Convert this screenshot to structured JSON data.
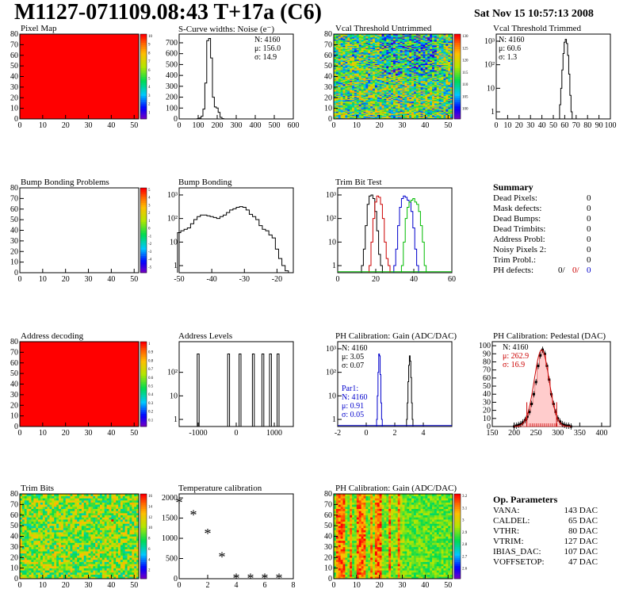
{
  "header": {
    "title": "M1127-071109.08:43 T+17a (C6)",
    "date": "Sat Nov 15 10:57:13 2008"
  },
  "colors": {
    "red": "#ff0000",
    "blue": "#0000cc",
    "green": "#00bb00",
    "darkred": "#cc0000",
    "black": "#000000"
  },
  "charts": {
    "pixel_map": {
      "title": "Pixel Map",
      "chart_data": {
        "type": "heatmap",
        "xlim": [
          0,
          52
        ],
        "ylim": [
          0,
          80
        ],
        "xticks": [
          0,
          10,
          20,
          30,
          40,
          50
        ],
        "yticks": [
          0,
          10,
          20,
          30,
          40,
          50,
          60,
          70,
          80
        ],
        "fill": "uniform red",
        "zlim": [
          0,
          10
        ],
        "zticks": [
          "1",
          "2",
          "3",
          "4",
          "5",
          "6",
          "7",
          "8",
          "9",
          "10"
        ]
      }
    },
    "scurve": {
      "title": "S-Curve widths: Noise (e⁻)",
      "stats": [
        "N: 4160",
        "μ: 156.0",
        "σ: 14.9"
      ],
      "chart_data": {
        "type": "histogram",
        "xlim": [
          0,
          600
        ],
        "ylim": [
          0,
          780
        ],
        "xticks": [
          0,
          100,
          200,
          300,
          400,
          500,
          600
        ],
        "yticks": [
          0,
          100,
          200,
          300,
          400,
          500,
          600,
          700
        ],
        "x": [
          100,
          110,
          120,
          130,
          140,
          150,
          160,
          170,
          180,
          190,
          200,
          210,
          220,
          230
        ],
        "y": [
          3,
          8,
          25,
          90,
          330,
          720,
          740,
          560,
          200,
          110,
          100,
          60,
          15,
          3
        ]
      }
    },
    "vcal_untrimmed": {
      "title": "Vcal Threshold Untrimmed",
      "chart_data": {
        "type": "heatmap",
        "xlim": [
          0,
          52
        ],
        "ylim": [
          0,
          80
        ],
        "xticks": [
          0,
          10,
          20,
          30,
          40,
          50
        ],
        "yticks": [
          0,
          10,
          20,
          30,
          40,
          50,
          60,
          70,
          80
        ],
        "zlim": [
          95,
          130
        ],
        "zticks": [
          "100",
          "105",
          "110",
          "115",
          "120",
          "125",
          "130"
        ]
      }
    },
    "vcal_trimmed": {
      "title": "Vcal Threshold Trimmed",
      "stats": [
        "N: 4160",
        "μ: 60.6",
        "σ:  1.3"
      ],
      "chart_data": {
        "type": "histogram",
        "log_y": true,
        "xlim": [
          0,
          100
        ],
        "ylim": [
          0.5,
          2000
        ],
        "xticks": [
          0,
          10,
          20,
          30,
          40,
          50,
          60,
          70,
          80,
          90,
          100
        ],
        "yticks": [
          {
            "v": 1,
            "l": "1"
          },
          {
            "v": 10,
            "l": "10"
          },
          {
            "v": 100,
            "l": "10²"
          },
          {
            "v": 1000,
            "l": "10³"
          }
        ],
        "x": [
          56,
          57,
          58,
          59,
          60,
          61,
          62,
          63,
          64,
          65,
          66
        ],
        "y": [
          2,
          10,
          60,
          300,
          900,
          1200,
          800,
          250,
          40,
          5,
          1
        ]
      }
    },
    "bump_problems": {
      "title": "Bump Bonding Problems",
      "chart_data": {
        "type": "heatmap",
        "xlim": [
          0,
          52
        ],
        "ylim": [
          0,
          80
        ],
        "xticks": [
          0,
          10,
          20,
          30,
          40,
          50
        ],
        "yticks": [
          0,
          10,
          20,
          30,
          40,
          50,
          60,
          70,
          80
        ],
        "fill": "empty",
        "zlim": [
          -5,
          5
        ],
        "zticks": [
          "-5",
          "-4",
          "-3",
          "-2",
          "-1",
          "0",
          "1",
          "2",
          "3",
          "4",
          "5"
        ]
      }
    },
    "bump_bonding": {
      "title": "Bump Bonding",
      "chart_data": {
        "type": "histogram",
        "log_y": true,
        "xlim": [
          -50,
          -15
        ],
        "ylim": [
          0.5,
          2000
        ],
        "xticks": [
          -50,
          -40,
          -30,
          -20
        ],
        "yticks": [
          {
            "v": 1,
            "l": "1"
          },
          {
            "v": 10,
            "l": "10"
          },
          {
            "v": 100,
            "l": "10²"
          },
          {
            "v": 1000,
            "l": "10³"
          }
        ],
        "x": [
          -50,
          -49,
          -48,
          -47,
          -46,
          -45,
          -44,
          -43,
          -42,
          -41,
          -40,
          -39,
          -38,
          -37,
          -36,
          -35,
          -34,
          -33,
          -32,
          -31,
          -30,
          -29,
          -28,
          -27,
          -26,
          -25,
          -24,
          -23,
          -22,
          -21,
          -20,
          -19,
          -18,
          -17
        ],
        "y": [
          25,
          30,
          35,
          40,
          60,
          90,
          120,
          140,
          140,
          130,
          120,
          110,
          100,
          120,
          140,
          180,
          230,
          260,
          300,
          320,
          300,
          230,
          150,
          120,
          90,
          50,
          35,
          30,
          20,
          15,
          5,
          2,
          1,
          0.6
        ]
      }
    },
    "trim_bit": {
      "title": "Trim Bit Test",
      "chart_data": {
        "type": "histogram",
        "log_y": true,
        "xlim": [
          0,
          60
        ],
        "ylim": [
          0.5,
          2000
        ],
        "xticks": [
          0,
          20,
          40,
          60
        ],
        "yticks": [
          {
            "v": 1,
            "l": "1"
          },
          {
            "v": 10,
            "l": "10"
          },
          {
            "v": 100,
            "l": "10²"
          },
          {
            "v": 1000,
            "l": "10³"
          }
        ],
        "series": [
          {
            "color": "#000000",
            "x": [
              13,
              14,
              15,
              16,
              17,
              18,
              19,
              20,
              21,
              22,
              23
            ],
            "y": [
              1,
              5,
              50,
              400,
              900,
              1000,
              700,
              200,
              30,
              3,
              1
            ]
          },
          {
            "color": "#cc0000",
            "x": [
              17,
              18,
              19,
              20,
              21,
              22,
              23,
              24,
              25,
              26,
              27
            ],
            "y": [
              1,
              10,
              100,
              500,
              900,
              800,
              400,
              100,
              10,
              2,
              1
            ]
          },
          {
            "color": "#0000cc",
            "x": [
              30,
              31,
              32,
              33,
              34,
              35,
              36,
              37,
              38,
              39,
              40,
              41,
              42
            ],
            "y": [
              1,
              5,
              50,
              300,
              700,
              900,
              800,
              600,
              500,
              200,
              40,
              5,
              1
            ]
          },
          {
            "color": "#00bb00",
            "x": [
              34,
              35,
              36,
              37,
              38,
              39,
              40,
              41,
              42,
              43,
              44,
              45,
              46
            ],
            "y": [
              1,
              10,
              100,
              300,
              500,
              600,
              700,
              500,
              400,
              200,
              50,
              10,
              1
            ]
          }
        ]
      }
    },
    "address_decoding": {
      "title": "Address decoding",
      "chart_data": {
        "type": "heatmap",
        "xlim": [
          0,
          52
        ],
        "ylim": [
          0,
          80
        ],
        "xticks": [
          0,
          10,
          20,
          30,
          40,
          50
        ],
        "yticks": [
          0,
          10,
          20,
          30,
          40,
          50,
          60,
          70,
          80
        ],
        "fill": "uniform red",
        "zlim": [
          0,
          1
        ],
        "zticks": [
          "0.1",
          "0.2",
          "0.3",
          "0.4",
          "0.5",
          "0.6",
          "0.7",
          "0.8",
          "0.9",
          "1"
        ]
      }
    },
    "address_levels": {
      "title": "Address Levels",
      "chart_data": {
        "type": "histogram",
        "log_y": true,
        "xlim": [
          -1500,
          1500
        ],
        "ylim": [
          0.5,
          2000
        ],
        "xticks": [
          -1000,
          0,
          1000
        ],
        "yticks": [
          {
            "v": 1,
            "l": "1"
          },
          {
            "v": 10,
            "l": "10"
          },
          {
            "v": 100,
            "l": "10²"
          }
        ],
        "peaks": [
          -1000,
          -200,
          100,
          450,
          700,
          900,
          1100
        ],
        "peak_height": 600
      }
    },
    "ph_gain": {
      "title": "PH Calibration: Gain (ADC/DAC)",
      "stats": [
        "N: 4160",
        "μ: 3.05",
        "σ: 0.07"
      ],
      "par_stats": [
        "Par1:",
        "N: 4160",
        "μ: 0.91",
        "σ: 0.05"
      ],
      "chart_data": {
        "type": "histogram",
        "log_y": true,
        "xlim": [
          -2,
          6
        ],
        "ylim": [
          0.5,
          2000
        ],
        "xticks": [
          -2,
          0,
          2,
          4
        ],
        "yticks": [
          {
            "v": 1,
            "l": "1"
          },
          {
            "v": 10,
            "l": "10"
          },
          {
            "v": 100,
            "l": "10²"
          },
          {
            "v": 1000,
            "l": "10³"
          }
        ],
        "series": [
          {
            "color": "#000000",
            "x": [
              2.85,
              2.9,
              2.95,
              3.0,
              3.05,
              3.1,
              3.15,
              3.2,
              3.25
            ],
            "y": [
              1,
              5,
              40,
              200,
              500,
              300,
              60,
              5,
              1
            ]
          },
          {
            "color": "#0000cc",
            "x": [
              0.75,
              0.8,
              0.85,
              0.9,
              0.95,
              1.0,
              1.05,
              1.1
            ],
            "y": [
              1,
              10,
              100,
              600,
              500,
              80,
              5,
              1
            ]
          }
        ]
      }
    },
    "ph_pedestal": {
      "title": "PH Calibration: Pedestal (DAC)",
      "stats": [
        "N: 4160",
        "μ: 262.9",
        "σ: 16.9"
      ],
      "chart_data": {
        "type": "histogram",
        "xlim": [
          150,
          420
        ],
        "ylim": [
          0,
          105
        ],
        "xticks": [
          150,
          200,
          250,
          300,
          350,
          400
        ],
        "yticks": [
          0,
          10,
          20,
          30,
          40,
          50,
          60,
          70,
          80,
          90,
          100
        ],
        "x": [
          200,
          205,
          210,
          215,
          220,
          225,
          230,
          235,
          240,
          245,
          250,
          255,
          260,
          265,
          270,
          275,
          280,
          285,
          290,
          295,
          300,
          305,
          310,
          315,
          320,
          325,
          330
        ],
        "y": [
          0,
          1,
          2,
          3,
          5,
          8,
          12,
          18,
          28,
          40,
          55,
          75,
          88,
          95,
          90,
          75,
          58,
          40,
          28,
          18,
          10,
          6,
          3,
          2,
          1,
          1,
          0
        ],
        "cut_lines": [
          229,
          297
        ]
      }
    },
    "trim_bits": {
      "title": "Trim Bits",
      "chart_data": {
        "type": "heatmap",
        "xlim": [
          0,
          52
        ],
        "ylim": [
          0,
          80
        ],
        "xticks": [
          0,
          10,
          20,
          30,
          40,
          50
        ],
        "yticks": [
          0,
          10,
          20,
          30,
          40,
          50,
          60,
          70,
          80
        ],
        "zlim": [
          0,
          16
        ],
        "zticks": [
          "2",
          "4",
          "6",
          "8",
          "10",
          "12",
          "14",
          "16"
        ]
      }
    },
    "temperature": {
      "title": "Temperature calibration",
      "chart_data": {
        "type": "scatter",
        "xlim": [
          0,
          8
        ],
        "ylim": [
          0,
          2100
        ],
        "xticks": [
          0,
          2,
          4,
          6,
          8
        ],
        "yticks": [
          0,
          500,
          1000,
          1500,
          2000
        ],
        "x": [
          0,
          1,
          2,
          3,
          4,
          5,
          6,
          7
        ],
        "y": [
          1880,
          1580,
          1120,
          540,
          10,
          10,
          10,
          10
        ]
      }
    },
    "ph_gain_map": {
      "title": "PH Calibration: Gain (ADC/DAC)",
      "chart_data": {
        "type": "heatmap",
        "xlim": [
          0,
          52
        ],
        "ylim": [
          0,
          80
        ],
        "xticks": [
          0,
          10,
          20,
          30,
          40,
          50
        ],
        "yticks": [
          0,
          10,
          20,
          30,
          40,
          50,
          60,
          70,
          80
        ],
        "zlim": [
          2.6,
          3.2
        ],
        "zticks": [
          "2.6",
          "2.7",
          "2.8",
          "2.9",
          "3",
          "3.1",
          "3.2"
        ]
      }
    }
  },
  "summary": {
    "title": "Summary",
    "rows": [
      {
        "label": "Dead Pixels:",
        "value": "0"
      },
      {
        "label": "Mask defects:",
        "value": "0"
      },
      {
        "label": "Dead Bumps:",
        "value": "0"
      },
      {
        "label": "Dead Trimbits:",
        "value": "0"
      },
      {
        "label": "Address Probl:",
        "value": "0"
      },
      {
        "label": "Noisy Pixels 2:",
        "value": "0"
      },
      {
        "label": "Trim Probl.:",
        "value": "0"
      }
    ],
    "ph_defects": {
      "label": "PH defects:",
      "v1": "0/",
      "v2": "0/",
      "v3": "0"
    }
  },
  "op_params": {
    "title": "Op. Parameters",
    "rows": [
      {
        "label": "VANA:",
        "value": "143 DAC"
      },
      {
        "label": "CALDEL:",
        "value": "65 DAC"
      },
      {
        "label": "VTHR:",
        "value": "80 DAC"
      },
      {
        "label": "VTRIM:",
        "value": "127 DAC"
      },
      {
        "label": "IBIAS_DAC:",
        "value": "107 DAC"
      },
      {
        "label": "VOFFSETOP:",
        "value": "47 DAC"
      }
    ]
  }
}
